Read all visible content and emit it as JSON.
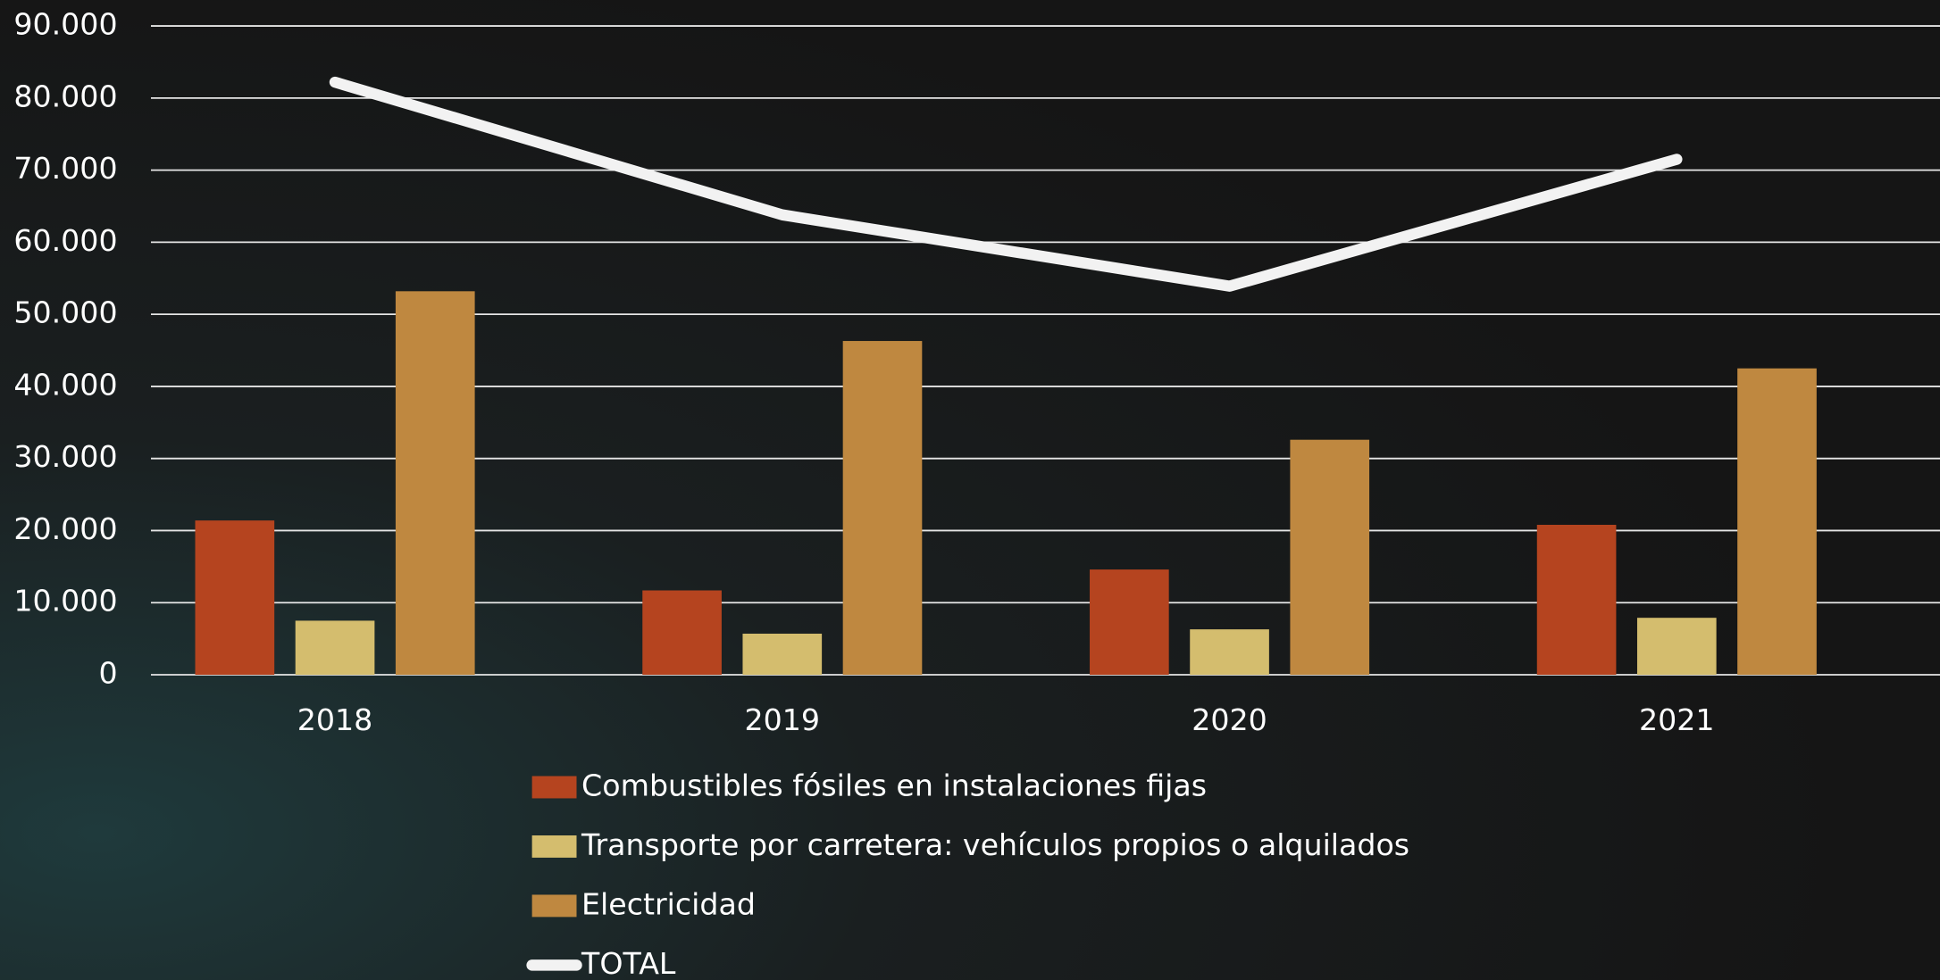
{
  "chart_data": {
    "type": "bar",
    "categories": [
      "2018",
      "2019",
      "2020",
      "2021"
    ],
    "series": [
      {
        "name": "Combustibles fósiles en instalaciones fijas",
        "color": "#b5441f",
        "values": [
          21400,
          11700,
          14600,
          20800
        ]
      },
      {
        "name": "Transporte por carretera: vehículos propios o alquilados",
        "color": "#d4bd6e",
        "values": [
          7500,
          5700,
          6300,
          7900
        ]
      },
      {
        "name": "Electricidad",
        "color": "#bf8840",
        "values": [
          53200,
          46300,
          32600,
          42500
        ]
      },
      {
        "name": "TOTAL",
        "color": "#f2f2f2",
        "type": "line",
        "values": [
          82200,
          63800,
          53900,
          71500
        ]
      }
    ],
    "ylim": [
      0,
      90000
    ],
    "yticks": [
      0,
      {
        "value": 10000,
        "label": "10.000"
      },
      {
        "value": 20000,
        "label": "20.000"
      },
      {
        "value": 30000,
        "label": "30.000"
      },
      {
        "value": 40000,
        "label": "40.000"
      },
      {
        "value": 50000,
        "label": "50.000"
      },
      {
        "value": 60000,
        "label": "60.000"
      },
      {
        "value": 70000,
        "label": "70.000"
      },
      {
        "value": 80000,
        "label": "80.000"
      },
      {
        "value": 90000,
        "label": "90.000"
      }
    ],
    "grid": true,
    "legend": "bottom"
  }
}
